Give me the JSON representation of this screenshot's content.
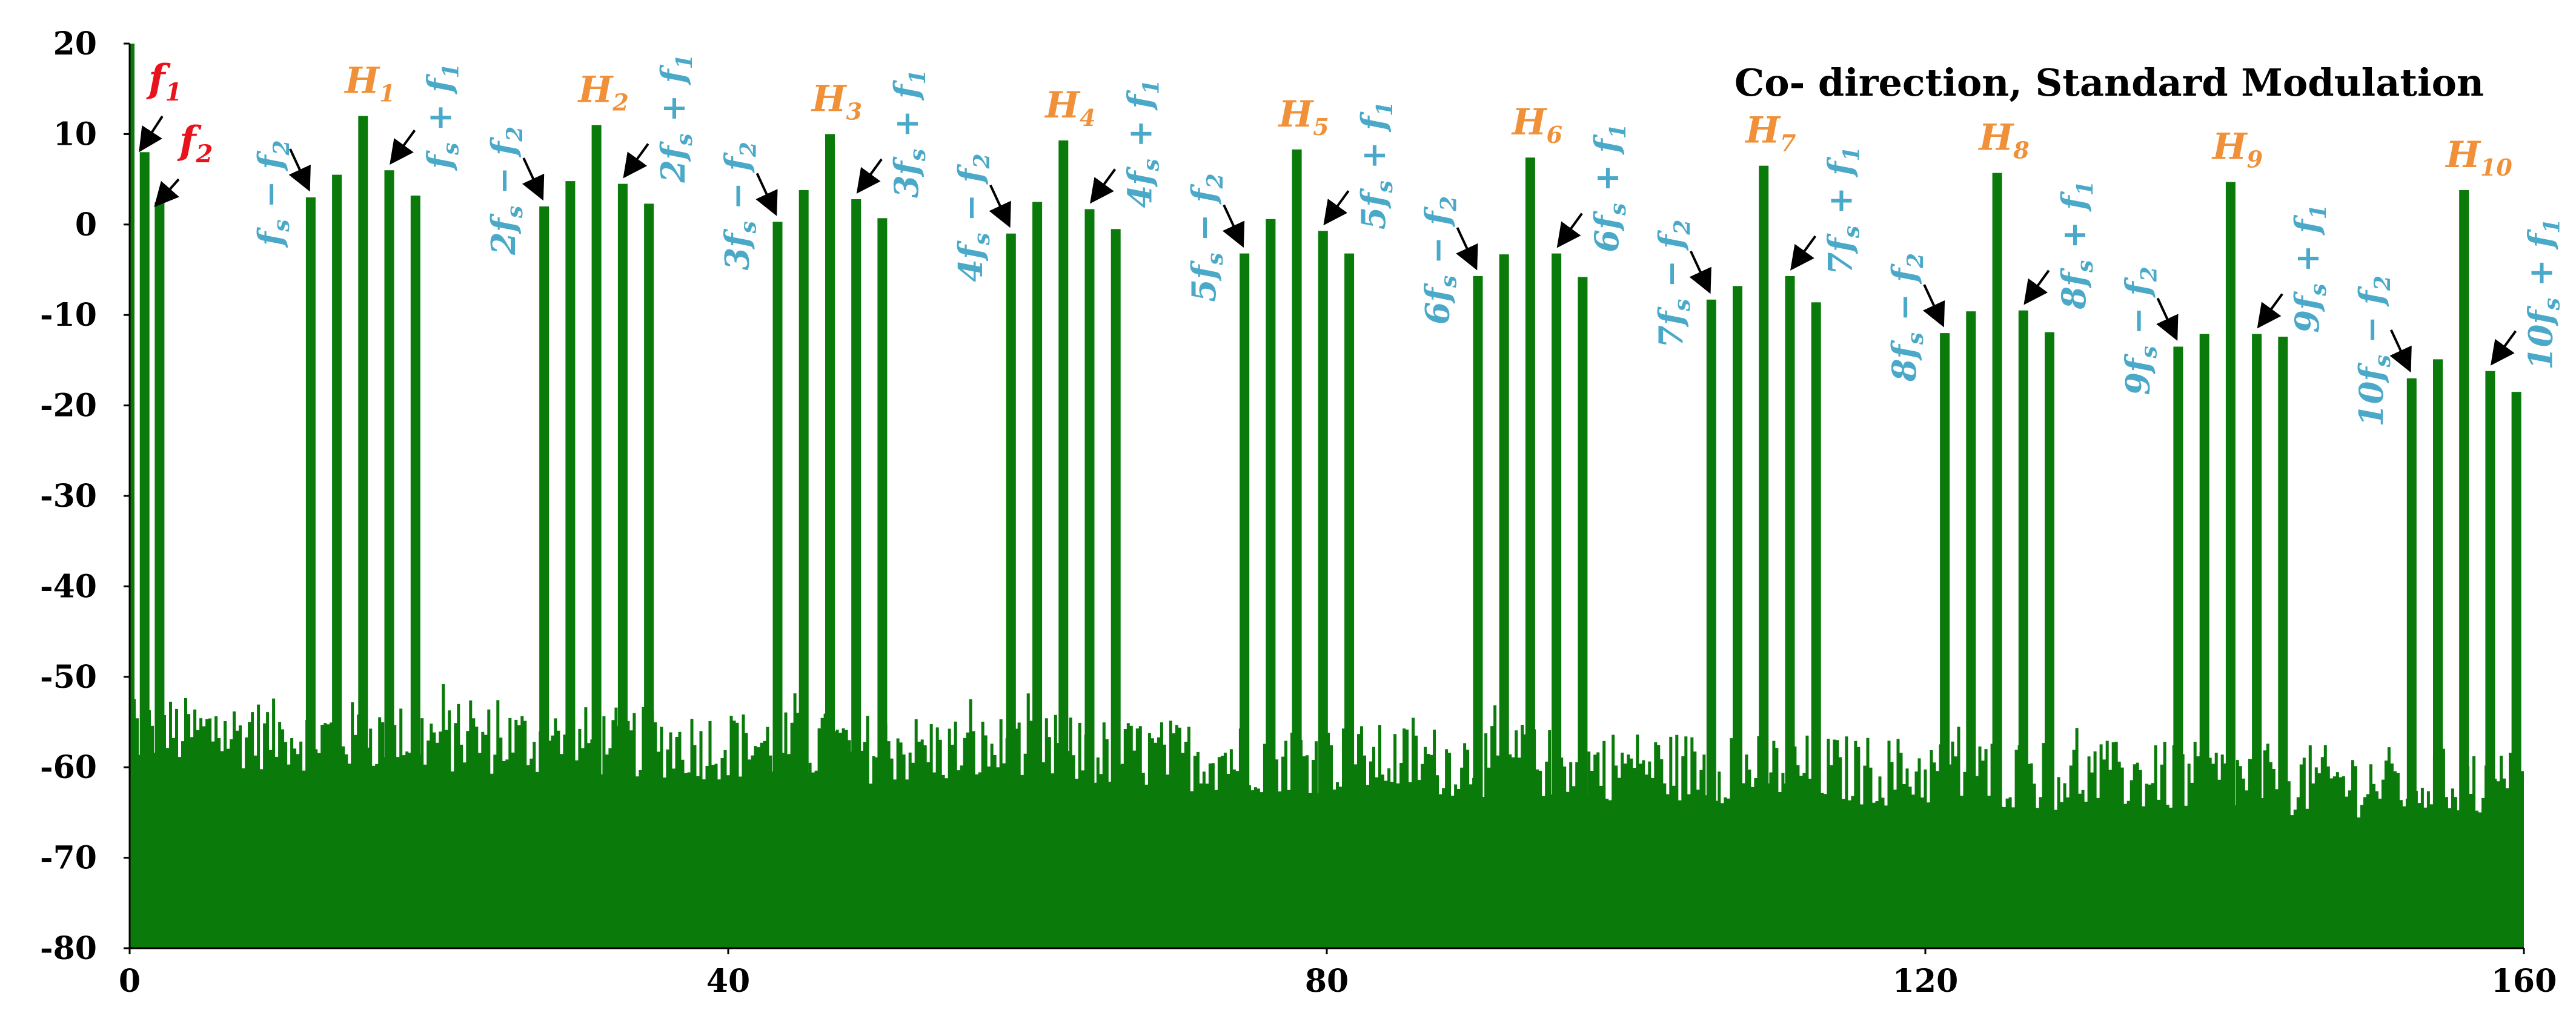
{
  "chart_data": {
    "type": "bar",
    "title": "Co- direction, Standard Modulation",
    "xlabel": "",
    "ylabel": "",
    "xlim": [
      0,
      160
    ],
    "ylim": [
      -80,
      20
    ],
    "x_ticks": [
      "0",
      "40",
      "80",
      "120",
      "160"
    ],
    "y_ticks": [
      "20",
      "10",
      "0",
      "-10",
      "-20",
      "-30",
      "-40",
      "-50",
      "-60",
      "-70",
      "-80"
    ],
    "colors": {
      "bars": "#0a7a0a",
      "harmonic_label": "#f0913a",
      "sideband_label": "#4aa9c8",
      "fundamental_label": "#e8141b",
      "arrow": "#000000"
    },
    "noise_floor": {
      "x_range": [
        0,
        160
      ],
      "level_db_start": -56,
      "level_db_end": -62,
      "variation_db": 4
    },
    "fundamentals": [
      {
        "label": "f",
        "sub": "1",
        "x": 1.0,
        "y": 8.0
      },
      {
        "label": "f",
        "sub": "2",
        "x": 2.0,
        "y": 2.5
      }
    ],
    "harmonics": [
      {
        "name": "H",
        "sub": "1",
        "center_x": 15.6,
        "bars": [
          3.0,
          5.5,
          12.0,
          6.0,
          3.2
        ],
        "left_sideband": "fs − f2",
        "right_sideband": "fs + f1"
      },
      {
        "name": "H",
        "sub": "2",
        "center_x": 31.2,
        "bars": [
          2.0,
          4.8,
          11.0,
          4.5,
          2.3
        ],
        "left_sideband": "2fs − f2",
        "right_sideband": "2fs + f1"
      },
      {
        "name": "H",
        "sub": "3",
        "center_x": 46.8,
        "bars": [
          0.3,
          3.8,
          10.0,
          2.8,
          0.7
        ],
        "left_sideband": "3fs − f2",
        "right_sideband": "3fs + f1"
      },
      {
        "name": "H",
        "sub": "4",
        "center_x": 62.4,
        "bars": [
          -1.0,
          2.5,
          9.3,
          1.7,
          -0.5
        ],
        "left_sideband": "4fs − f2",
        "right_sideband": "4fs + f1"
      },
      {
        "name": "H",
        "sub": "5",
        "center_x": 78.0,
        "bars": [
          -3.2,
          0.6,
          8.3,
          -0.7,
          -3.2
        ],
        "left_sideband": "5fs − f2",
        "right_sideband": "5fs + f1"
      },
      {
        "name": "H",
        "sub": "6",
        "center_x": 93.6,
        "bars": [
          -5.7,
          -3.3,
          7.4,
          -3.2,
          -5.8
        ],
        "left_sideband": "6fs − f2",
        "right_sideband": "6fs + f1"
      },
      {
        "name": "H",
        "sub": "7",
        "center_x": 109.2,
        "bars": [
          -8.3,
          -6.8,
          6.5,
          -5.7,
          -8.6
        ],
        "left_sideband": "7fs − f2",
        "right_sideband": "7fs + f1"
      },
      {
        "name": "H",
        "sub": "8",
        "center_x": 124.8,
        "bars": [
          -12.0,
          -9.6,
          5.7,
          -9.5,
          -11.9
        ],
        "left_sideband": "8fs − f2",
        "right_sideband": "8fs + f1"
      },
      {
        "name": "H",
        "sub": "9",
        "center_x": 140.4,
        "bars": [
          -13.5,
          -12.1,
          4.7,
          -12.1,
          -12.4
        ],
        "left_sideband": "9fs − f2",
        "right_sideband": "9fs + f1"
      },
      {
        "name": "H",
        "sub": "10",
        "center_x": 156.0,
        "bars": [
          -17.0,
          -14.9,
          3.8,
          -16.2,
          -18.5
        ],
        "left_sideband": "10fs − f2",
        "right_sideband": "10fs + f1"
      }
    ]
  }
}
